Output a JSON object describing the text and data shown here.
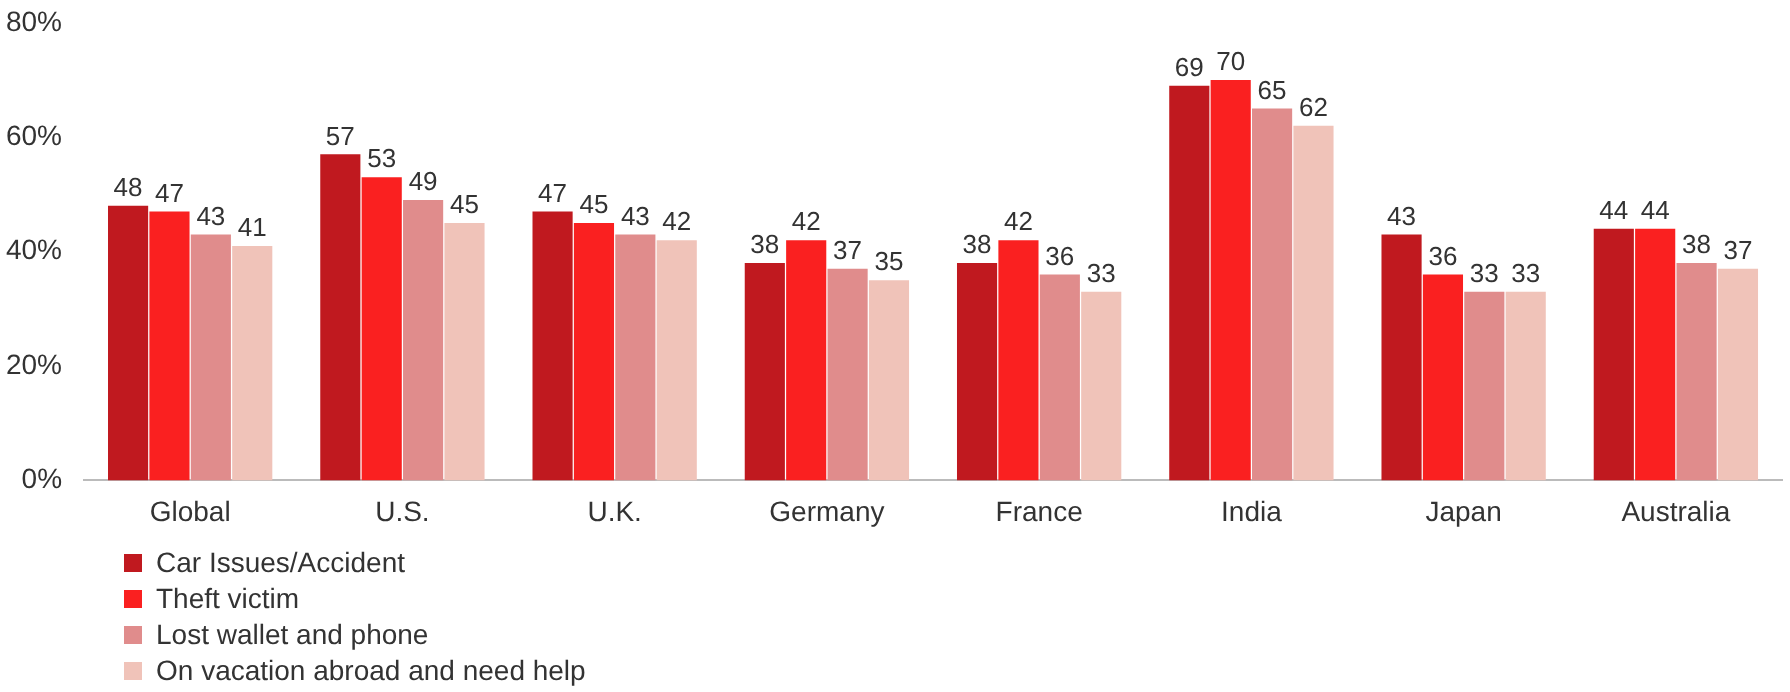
{
  "chart_data": {
    "type": "bar",
    "categories": [
      "Global",
      "U.S.",
      "U.K.",
      "Germany",
      "France",
      "India",
      "Japan",
      "Australia"
    ],
    "series": [
      {
        "name": "Car Issues/Accident",
        "color": "#c0191f",
        "values": [
          48,
          57,
          47,
          38,
          38,
          69,
          43,
          44
        ]
      },
      {
        "name": "Theft victim",
        "color": "#fa2020",
        "values": [
          47,
          53,
          45,
          42,
          42,
          70,
          36,
          44
        ]
      },
      {
        "name": "Lost wallet and phone",
        "color": "#e08c8c",
        "values": [
          43,
          49,
          43,
          37,
          36,
          65,
          33,
          38
        ]
      },
      {
        "name": "On vacation abroad and need help",
        "color": "#f0c3b9",
        "values": [
          41,
          45,
          42,
          35,
          33,
          62,
          33,
          37
        ]
      }
    ],
    "ylim": [
      0,
      80
    ],
    "yticks": [
      {
        "value": 0,
        "label": "0%"
      },
      {
        "value": 20,
        "label": "20%"
      },
      {
        "value": 40,
        "label": "40%"
      },
      {
        "value": 60,
        "label": "60%"
      },
      {
        "value": 80,
        "label": "80%"
      }
    ],
    "grid": false,
    "legend": "bottom",
    "data_labels": true
  }
}
